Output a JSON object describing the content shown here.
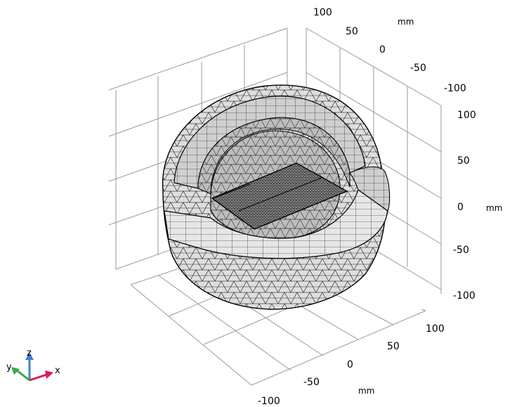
{
  "view": {
    "axes": {
      "top": {
        "ticks": [
          "100",
          "50",
          "0",
          "-50",
          "-100"
        ],
        "unit": "mm"
      },
      "right": {
        "ticks": [
          "100",
          "50",
          "0",
          "-50",
          "-100"
        ],
        "unit": "mm"
      },
      "bottom": {
        "ticks": [
          "100",
          "50",
          "0",
          "-50",
          "-100"
        ],
        "unit": "mm"
      }
    },
    "triad": {
      "x": "x",
      "y": "y",
      "z": "z"
    },
    "colors": {
      "mesh_face": "#c9c9c9",
      "mesh_face_light": "#e2e2e2",
      "mesh_face_dark": "#a9a9a9",
      "mesh_edge": "#000000",
      "grid": "#9a9a9a",
      "triad_x": "#d81b5a",
      "triad_y": "#3aa54a",
      "triad_z": "#3f7fd0"
    }
  }
}
